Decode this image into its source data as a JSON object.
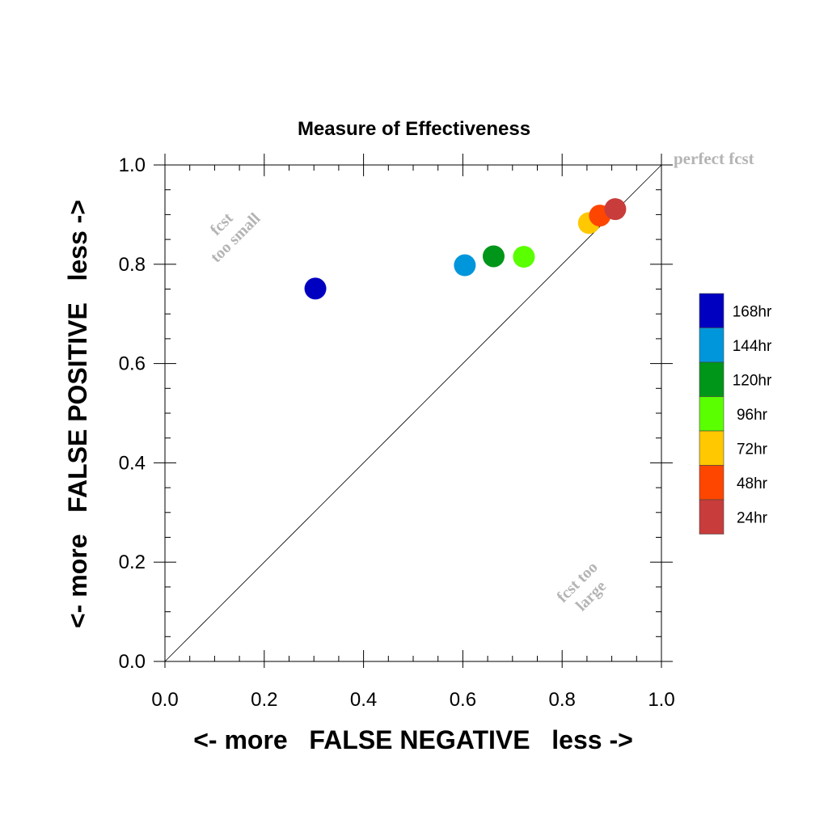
{
  "chart_data": {
    "type": "scatter",
    "title": "Measure of Effectiveness",
    "xlabel": "<- more   FALSE NEGATIVE   less ->",
    "ylabel": "<- more   FALSE POSITIVE   less ->",
    "xlim": [
      0,
      1
    ],
    "ylim": [
      0,
      1
    ],
    "xticks": [
      "0.0",
      "0.2",
      "0.4",
      "0.6",
      "0.8",
      "1.0"
    ],
    "yticks": [
      "0.0",
      "0.2",
      "0.4",
      "0.6",
      "0.8",
      "1.0"
    ],
    "grid": false,
    "legend_position": "right",
    "points": [
      {
        "name": "168hr",
        "x": 0.303,
        "y": 0.751,
        "color": "#0000c0"
      },
      {
        "name": "144hr",
        "x": 0.604,
        "y": 0.798,
        "color": "#0096dc"
      },
      {
        "name": "120hr",
        "x": 0.662,
        "y": 0.816,
        "color": "#009619"
      },
      {
        "name": "96hr",
        "x": 0.723,
        "y": 0.815,
        "color": "#5aff00"
      },
      {
        "name": "72hr",
        "x": 0.854,
        "y": 0.883,
        "color": "#ffc800"
      },
      {
        "name": "48hr",
        "x": 0.876,
        "y": 0.898,
        "color": "#ff4600"
      },
      {
        "name": "24hr",
        "x": 0.907,
        "y": 0.911,
        "color": "#c83c3c"
      }
    ],
    "legend": [
      {
        "label": "168hr",
        "color": "#0000c0"
      },
      {
        "label": "144hr",
        "color": "#0096dc"
      },
      {
        "label": "120hr",
        "color": "#009619"
      },
      {
        "label": "96hr",
        "color": "#5aff00"
      },
      {
        "label": "72hr",
        "color": "#ffc800"
      },
      {
        "label": "48hr",
        "color": "#ff4600"
      },
      {
        "label": "24hr",
        "color": "#c83c3c"
      }
    ],
    "annotations": {
      "perfect": "perfect fcst",
      "too_small_1": "fcst",
      "too_small_2": "too small",
      "too_large_1": "fcst too",
      "too_large_2": "large"
    }
  }
}
